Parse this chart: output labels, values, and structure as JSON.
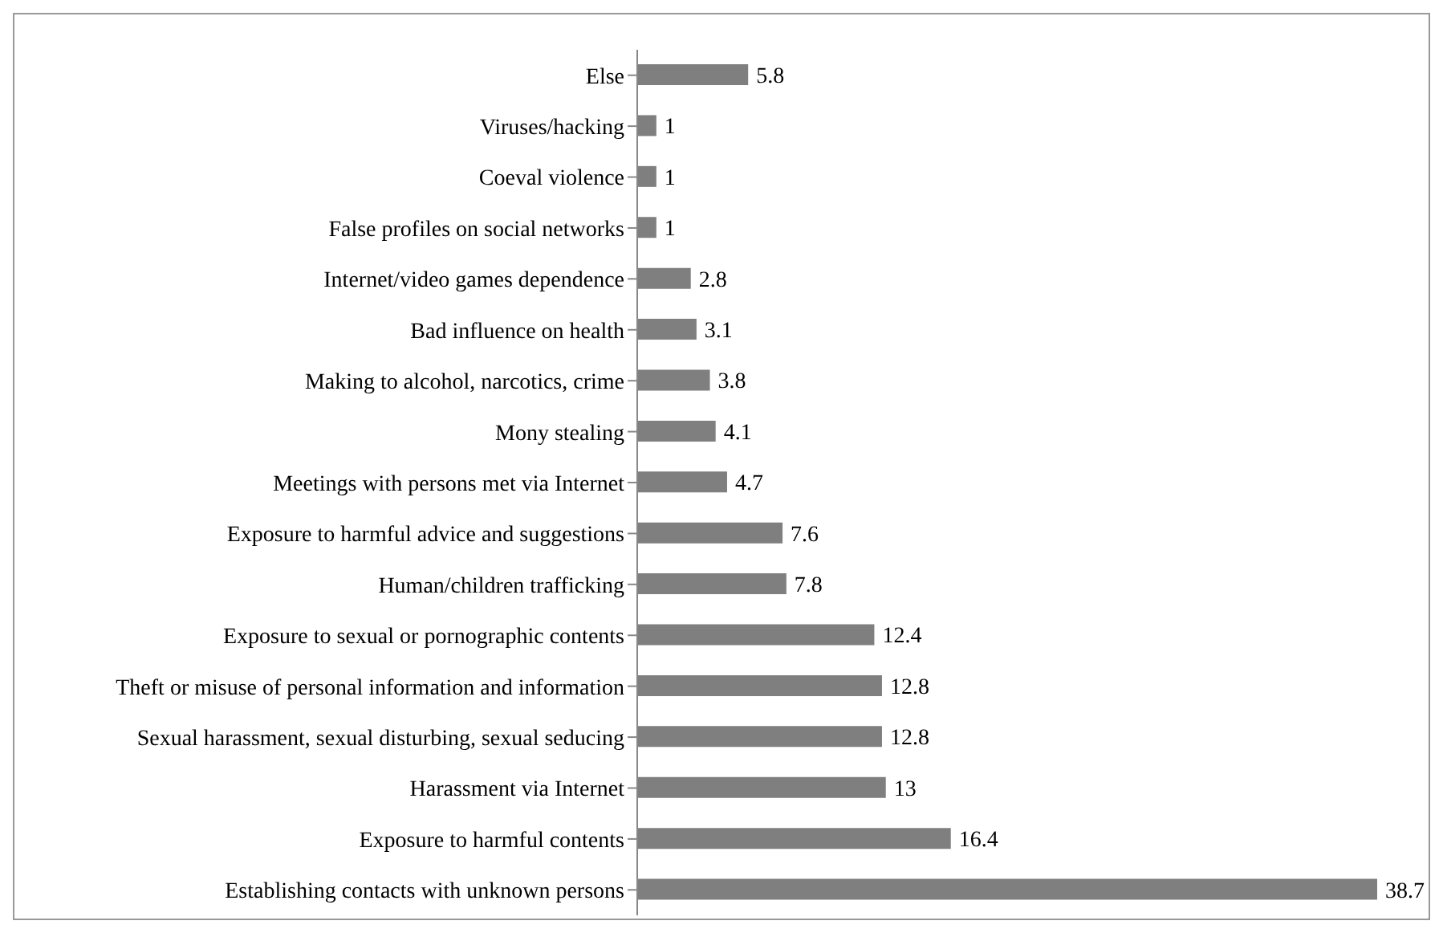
{
  "chart_data": {
    "type": "bar",
    "orientation": "horizontal",
    "categories": [
      "Else",
      "Viruses/hacking",
      "Coeval violence",
      "False profiles on social networks",
      "Internet/video games dependence",
      "Bad influence on health",
      "Making to alcohol, narcotics, crime",
      "Mony stealing",
      "Meetings with persons met via Internet",
      "Exposure to harmful advice and suggestions",
      "Human/children trafficking",
      "Exposure to sexual or pornographic contents",
      "Theft or misuse of personal information and information",
      "Sexual harassment, sexual disturbing, sexual seducing",
      "Harassment via Internet",
      "Exposure to harmful contents",
      "Establishing contacts with unknown persons"
    ],
    "values": [
      5.8,
      1,
      1,
      1,
      2.8,
      3.1,
      3.8,
      4.1,
      4.7,
      7.6,
      7.8,
      12.4,
      12.8,
      12.8,
      13,
      16.4,
      38.7
    ],
    "color": "#7f7f7f",
    "data_labels": true
  }
}
